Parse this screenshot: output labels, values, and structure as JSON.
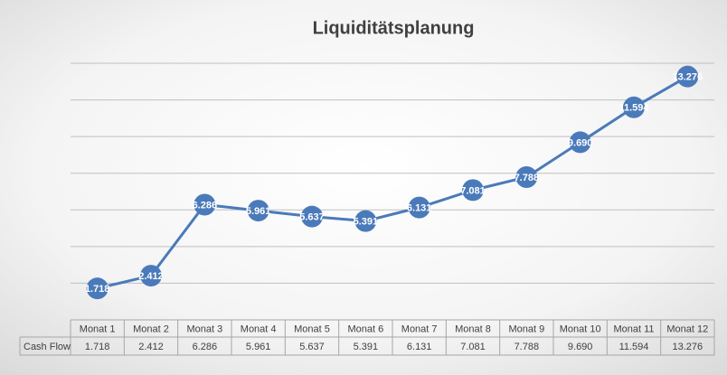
{
  "chart_data": {
    "type": "line",
    "title": "Liquiditätsplanung",
    "categories": [
      "Monat 1",
      "Monat 2",
      "Monat 3",
      "Monat 4",
      "Monat 5",
      "Monat 6",
      "Monat 7",
      "Monat 8",
      "Monat 9",
      "Monat 10",
      "Monat 11",
      "Monat 12"
    ],
    "series": [
      {
        "name": "Cash Flow",
        "color": "#4a7ab9",
        "values": [
          1718,
          2412,
          6286,
          5961,
          5637,
          5391,
          6131,
          7081,
          7788,
          9690,
          11594,
          13276
        ],
        "value_labels": [
          "1.718",
          "2.412",
          "6.286",
          "5.961",
          "5.637",
          "5.391",
          "6.131",
          "7.081",
          "7.788",
          "9.690",
          "11.594",
          "13.276"
        ]
      }
    ],
    "ylim": [
      0,
      14000
    ],
    "yticks": [
      0,
      2000,
      4000,
      6000,
      8000,
      10000,
      12000,
      14000
    ],
    "grid": true
  }
}
